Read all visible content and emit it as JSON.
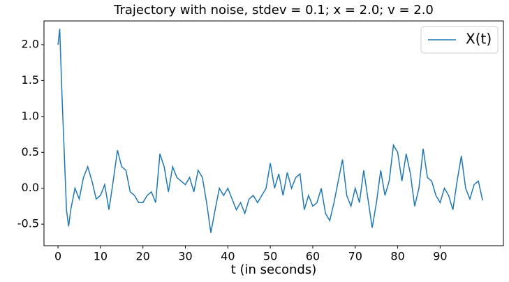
{
  "chart_data": {
    "type": "line",
    "title": "Trajectory with noise, stdev = 0.1; x = 2.0; v = 2.0",
    "xlabel": "t (in seconds)",
    "x": [
      0,
      0.4,
      1,
      2,
      2.5,
      3,
      4,
      5,
      6,
      7,
      8,
      9,
      10,
      11,
      12,
      13,
      14,
      15,
      16,
      17,
      18,
      19,
      20,
      21,
      22,
      23,
      24,
      25,
      26,
      27,
      28,
      29,
      30,
      31,
      32,
      33,
      34,
      35,
      36,
      37,
      38,
      39,
      40,
      41,
      42,
      43,
      44,
      45,
      46,
      47,
      48,
      49,
      50,
      51,
      52,
      53,
      54,
      55,
      56,
      57,
      58,
      59,
      60,
      61,
      62,
      63,
      64,
      65,
      66,
      67,
      68,
      69,
      70,
      71,
      72,
      73,
      74,
      75,
      76,
      77,
      78,
      79,
      80,
      81,
      82,
      83,
      84,
      85,
      86,
      87,
      88,
      89,
      90,
      91,
      92,
      93,
      94,
      95,
      96,
      97,
      98,
      99,
      100
    ],
    "series": [
      {
        "name": "X(t)",
        "color": "#1f77b4",
        "values": [
          2.0,
          2.22,
          1.2,
          -0.3,
          -0.53,
          -0.3,
          0.0,
          -0.15,
          0.15,
          0.3,
          0.1,
          -0.15,
          -0.1,
          0.05,
          -0.3,
          0.1,
          0.53,
          0.3,
          0.25,
          -0.05,
          -0.1,
          -0.2,
          -0.2,
          -0.1,
          -0.05,
          -0.2,
          0.48,
          0.3,
          -0.05,
          0.3,
          0.15,
          0.1,
          0.05,
          0.15,
          -0.05,
          0.25,
          0.15,
          -0.2,
          -0.62,
          -0.3,
          0.0,
          -0.1,
          0.0,
          -0.15,
          -0.3,
          -0.2,
          -0.35,
          -0.15,
          -0.1,
          -0.2,
          -0.1,
          0.0,
          0.35,
          0.0,
          0.2,
          -0.1,
          0.22,
          0.0,
          0.15,
          0.2,
          -0.3,
          -0.1,
          -0.25,
          -0.2,
          0.0,
          -0.35,
          -0.45,
          -0.2,
          0.1,
          0.4,
          -0.1,
          -0.25,
          0.0,
          -0.2,
          0.25,
          -0.15,
          -0.55,
          -0.2,
          0.25,
          -0.1,
          0.1,
          0.6,
          0.5,
          0.1,
          0.48,
          0.2,
          -0.25,
          0.0,
          0.55,
          0.15,
          0.1,
          -0.1,
          -0.2,
          0.0,
          -0.1,
          -0.3,
          0.1,
          0.45,
          0.0,
          -0.15,
          0.05,
          0.1,
          -0.17
        ]
      }
    ],
    "xlim": [
      -3.3,
      104.9
    ],
    "ylim": [
      -0.8,
      2.33
    ],
    "xticks": [
      0,
      10,
      20,
      30,
      40,
      50,
      60,
      70,
      80,
      90
    ],
    "yticks": [
      -0.5,
      {
        "value": 0,
        "label": "0.0"
      },
      0.5,
      {
        "value": 1,
        "label": "1.0"
      },
      1.5,
      {
        "value": 2,
        "label": "2.0"
      }
    ],
    "legend": "upper right"
  }
}
